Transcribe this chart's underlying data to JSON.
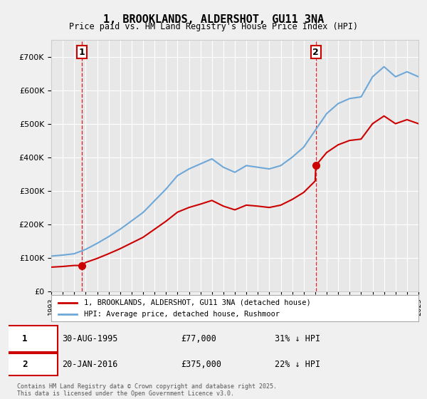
{
  "title": "1, BROOKLANDS, ALDERSHOT, GU11 3NA",
  "subtitle": "Price paid vs. HM Land Registry's House Price Index (HPI)",
  "legend_line1": "1, BROOKLANDS, ALDERSHOT, GU11 3NA (detached house)",
  "legend_line2": "HPI: Average price, detached house, Rushmoor",
  "annotation1_label": "1",
  "annotation1_date": "30-AUG-1995",
  "annotation1_price": "£77,000",
  "annotation1_hpi": "31% ↓ HPI",
  "annotation2_label": "2",
  "annotation2_date": "20-JAN-2016",
  "annotation2_price": "£375,000",
  "annotation2_hpi": "22% ↓ HPI",
  "copyright": "Contains HM Land Registry data © Crown copyright and database right 2025.\nThis data is licensed under the Open Government Licence v3.0.",
  "hpi_color": "#6ea8d8",
  "price_color": "#cc0000",
  "vline_color": "#cc0000",
  "point1_color": "#cc0000",
  "point2_color": "#cc0000",
  "background_color": "#f0f0f0",
  "plot_bg_color": "#ffffff",
  "ylim_min": 0,
  "ylim_max": 750000,
  "ylabel_format": "pound_k",
  "x_start_year": 1993,
  "x_end_year": 2025,
  "sale1_year": 1995.66,
  "sale1_price": 77000,
  "sale2_year": 2016.05,
  "sale2_price": 375000,
  "vline1_year": 1995.66,
  "vline2_year": 2016.05
}
